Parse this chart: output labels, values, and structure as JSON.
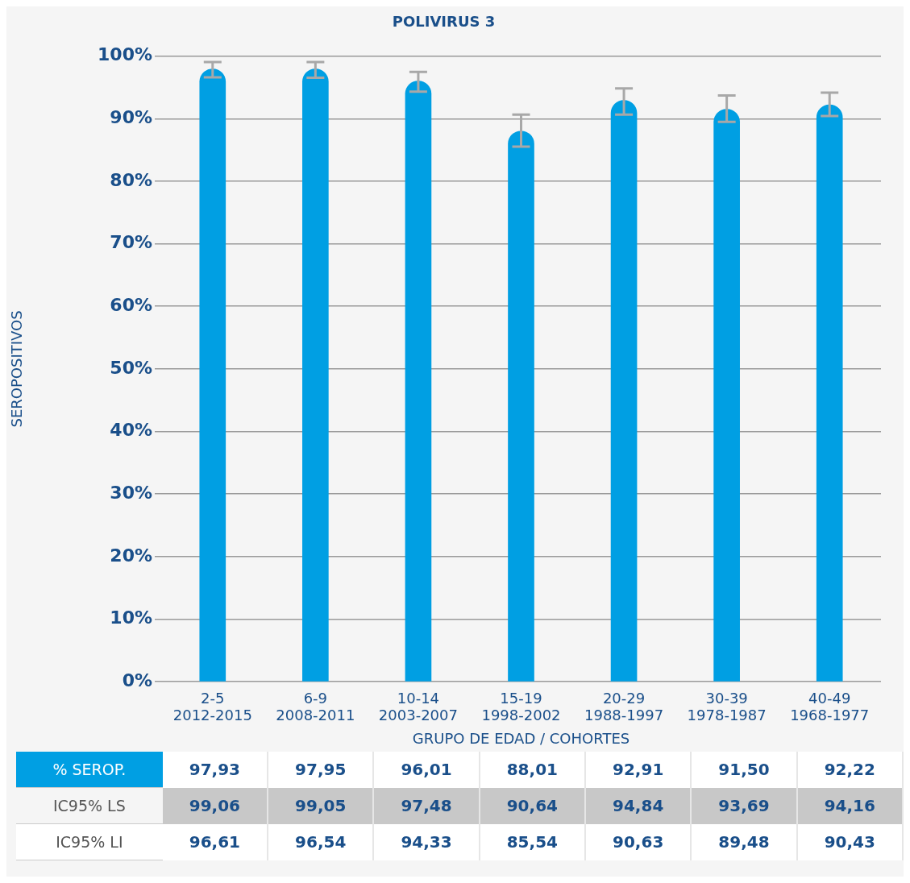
{
  "chart_data": {
    "type": "bar",
    "title": "POLIVIRUS 3",
    "xlabel": "GRUPO DE EDAD / COHORTES",
    "ylabel": "SEROPOSITIVOS",
    "categories": [
      "2-5\n2012-2015",
      "6-9\n2008-2011",
      "10-14\n2003-2007",
      "15-19\n1998-2002",
      "20-29\n1988-1997",
      "30-39\n1978-1987",
      "40-49\n1968-1977"
    ],
    "values": [
      97.93,
      97.95,
      96.01,
      88.01,
      92.91,
      91.5,
      92.22
    ],
    "value_labels": [
      "97,93",
      "97,95",
      "96,01",
      "88,01",
      "92,91",
      "91,50",
      "92,22"
    ],
    "errors": [
      [
        96.61,
        99.06
      ],
      [
        96.54,
        99.05
      ],
      [
        94.33,
        97.48
      ],
      [
        85.54,
        90.64
      ],
      [
        90.63,
        94.84
      ],
      [
        89.48,
        93.69
      ],
      [
        90.43,
        94.16
      ]
    ],
    "color": "#009fe3",
    "ylim": [
      0,
      100
    ],
    "yticks": [
      {
        "value": 0,
        "label": "0%"
      },
      {
        "value": 10,
        "label": "10%"
      },
      {
        "value": 20,
        "label": "20%"
      },
      {
        "value": 30,
        "label": "30%"
      },
      {
        "value": 40,
        "label": "40%"
      },
      {
        "value": 50,
        "label": "50%"
      },
      {
        "value": 60,
        "label": "60%"
      },
      {
        "value": 70,
        "label": "70%"
      },
      {
        "value": 80,
        "label": "80%"
      },
      {
        "value": 90,
        "label": "90%"
      },
      {
        "value": 100,
        "label": "100%"
      }
    ],
    "grid": "y",
    "legend": false,
    "annotations": [
      "% SEROP.",
      "IC95% LS",
      "IC95% LI",
      "99,06",
      "99,05",
      "97,48",
      "90,64",
      "94,84",
      "93,69",
      "94,16",
      "96,61",
      "96,54",
      "94,33",
      "85,54",
      "90,63",
      "89,48",
      "90,43"
    ]
  }
}
